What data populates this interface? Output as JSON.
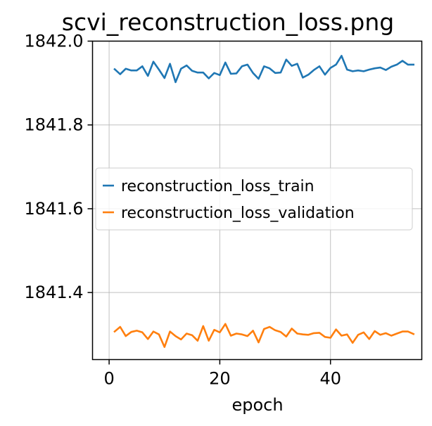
{
  "chart_data": {
    "type": "line",
    "title": "scvi_reconstruction_loss.png",
    "xlabel": "epoch",
    "ylabel": "",
    "xlim": [
      -3,
      56.5
    ],
    "ylim": [
      1841.24,
      1842.0
    ],
    "xticks": [
      0,
      20,
      40
    ],
    "yticks": [
      1841.4,
      1841.6,
      1841.8,
      1842.0
    ],
    "ytick_labels": [
      "1841.4",
      "1841.6",
      "1841.8",
      "1842.0"
    ],
    "grid": true,
    "legend_position": "center-left",
    "x": [
      1,
      2,
      3,
      4,
      5,
      6,
      7,
      8,
      9,
      10,
      11,
      12,
      13,
      14,
      15,
      16,
      17,
      18,
      19,
      20,
      21,
      22,
      23,
      24,
      25,
      26,
      27,
      28,
      29,
      30,
      31,
      32,
      33,
      34,
      35,
      36,
      37,
      38,
      39,
      40,
      41,
      42,
      43,
      44,
      45,
      46,
      47,
      48,
      49,
      50,
      51,
      52,
      53,
      54,
      55
    ],
    "series": [
      {
        "name": "reconstruction_loss_train",
        "color": "#1f77b4",
        "values": [
          1841.933,
          1841.921,
          1841.934,
          1841.93,
          1841.93,
          1841.94,
          1841.917,
          1841.951,
          1841.932,
          1841.912,
          1841.946,
          1841.902,
          1841.934,
          1841.942,
          1841.929,
          1841.925,
          1841.925,
          1841.911,
          1841.924,
          1841.919,
          1841.949,
          1841.922,
          1841.923,
          1841.94,
          1841.944,
          1841.924,
          1841.91,
          1841.94,
          1841.935,
          1841.924,
          1841.925,
          1841.956,
          1841.941,
          1841.946,
          1841.913,
          1841.92,
          1841.931,
          1841.94,
          1841.92,
          1841.936,
          1841.944,
          1841.965,
          1841.932,
          1841.928,
          1841.93,
          1841.928,
          1841.932,
          1841.935,
          1841.937,
          1841.931,
          1841.939,
          1841.944,
          1841.953,
          1841.944,
          1841.944
        ]
      },
      {
        "name": "reconstruction_loss_validation",
        "color": "#ff7f0e",
        "values": [
          1841.307,
          1841.318,
          1841.296,
          1841.306,
          1841.309,
          1841.305,
          1841.289,
          1841.307,
          1841.3,
          1841.27,
          1841.307,
          1841.296,
          1841.288,
          1841.302,
          1841.298,
          1841.285,
          1841.32,
          1841.285,
          1841.311,
          1841.305,
          1841.325,
          1841.297,
          1841.302,
          1841.3,
          1841.296,
          1841.309,
          1841.281,
          1841.313,
          1841.318,
          1841.31,
          1841.306,
          1841.295,
          1841.314,
          1841.302,
          1841.3,
          1841.299,
          1841.303,
          1841.304,
          1841.294,
          1841.292,
          1841.312,
          1841.297,
          1841.3,
          1841.28,
          1841.299,
          1841.305,
          1841.289,
          1841.308,
          1841.299,
          1841.303,
          1841.297,
          1841.302,
          1841.307,
          1841.307,
          1841.301
        ]
      }
    ]
  }
}
